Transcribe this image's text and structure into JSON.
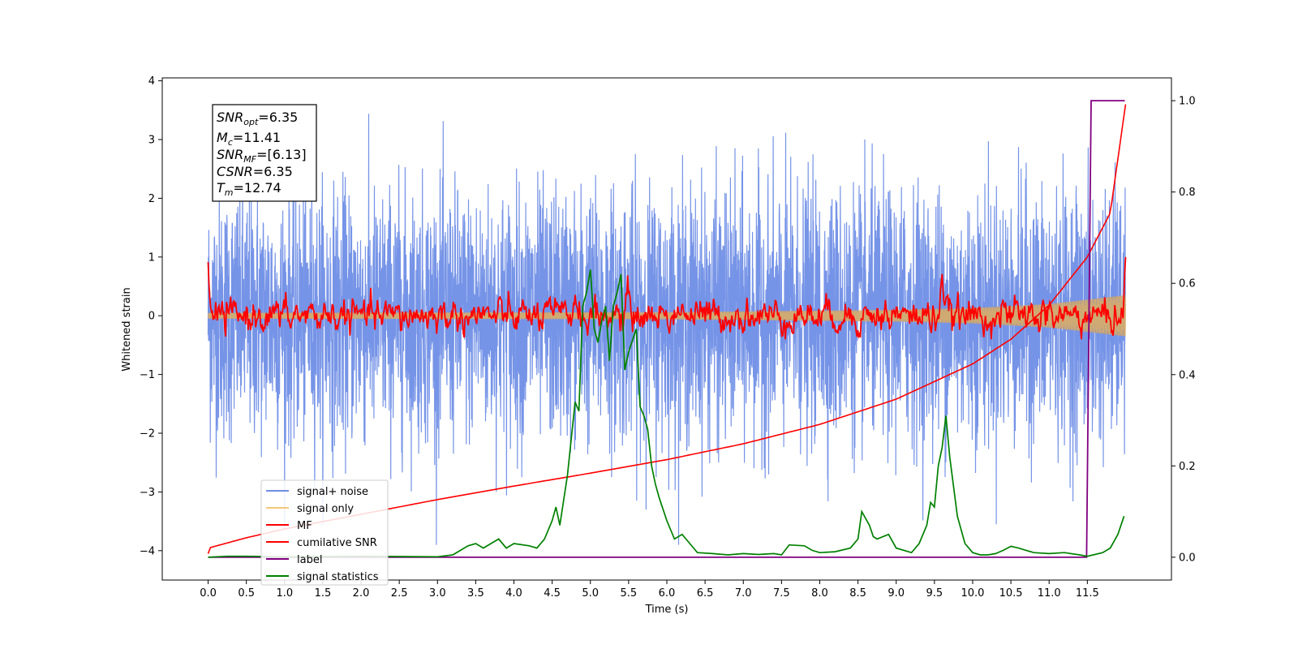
{
  "chart_data": {
    "type": "line",
    "xlabel": "Time (s)",
    "ylabel_left": "Whitened strain",
    "ylabel_right": "",
    "xlim": [
      -0.6,
      12.6
    ],
    "ylim_left": [
      -4.5,
      4.05
    ],
    "ylim_right": [
      -0.05,
      1.05
    ],
    "x_ticks": [
      "0.0",
      "0.5",
      "1.0",
      "1.5",
      "2.0",
      "2.5",
      "3.0",
      "3.5",
      "4.0",
      "4.5",
      "5.0",
      "5.5",
      "6.0",
      "6.5",
      "7.0",
      "7.5",
      "8.0",
      "8.5",
      "9.0",
      "9.5",
      "10.0",
      "10.5",
      "11.0",
      "11.5"
    ],
    "y_ticks_left": [
      "4",
      "3",
      "2",
      "1",
      "0",
      "−1",
      "−2",
      "−3",
      "−4"
    ],
    "y_ticks_right": [
      "1.0",
      "0.8",
      "0.6",
      "0.4",
      "0.2",
      "0.0"
    ],
    "grid": false,
    "legend_placement": "lower-left",
    "info_box": {
      "snr_opt": "=6.35",
      "mc": "=11.41",
      "snr_mf": "=[6.13]",
      "csnr": "=6.35",
      "tm": "=12.74"
    },
    "series": [
      {
        "name": "signal+ noise",
        "axis": "left",
        "color": "#6f8ee6",
        "x_range": [
          0.0,
          12.0
        ],
        "description_values": "noisy whitened strain, approx between -3.7 and 3.7"
      },
      {
        "name": "signal only",
        "axis": "left",
        "color": "#f5c77a",
        "x_range": [
          0.0,
          12.0
        ],
        "envelope_amplitude": [
          [
            0.0,
            0.05
          ],
          [
            6.0,
            0.06
          ],
          [
            9.0,
            0.1
          ],
          [
            10.0,
            0.13
          ],
          [
            11.0,
            0.2
          ],
          [
            12.0,
            0.35
          ]
        ]
      },
      {
        "name": "MF",
        "axis": "left",
        "color": "#ff0000",
        "x_range": [
          0.0,
          12.0
        ],
        "peaks": [
          [
            0.0,
            1.0
          ],
          [
            0.05,
            -0.2
          ],
          [
            4.8,
            0.5
          ],
          [
            5.5,
            0.45
          ],
          [
            6.2,
            0.4
          ],
          [
            9.6,
            0.9
          ],
          [
            12.0,
            0.95
          ]
        ]
      },
      {
        "name": "cumilative SNR",
        "axis": "left",
        "color": "#ff0000",
        "points": [
          [
            0.0,
            -4.05
          ],
          [
            0.02,
            -3.95
          ],
          [
            0.5,
            -3.78
          ],
          [
            1.0,
            -3.63
          ],
          [
            2.0,
            -3.38
          ],
          [
            3.0,
            -3.13
          ],
          [
            4.0,
            -2.9
          ],
          [
            5.0,
            -2.68
          ],
          [
            6.0,
            -2.45
          ],
          [
            7.0,
            -2.18
          ],
          [
            8.0,
            -1.85
          ],
          [
            9.0,
            -1.42
          ],
          [
            10.0,
            -0.82
          ],
          [
            10.5,
            -0.4
          ],
          [
            11.0,
            0.18
          ],
          [
            11.5,
            1.0
          ],
          [
            11.8,
            1.75
          ],
          [
            12.0,
            3.6
          ]
        ]
      },
      {
        "name": "label",
        "axis": "right",
        "color": "#800080",
        "points": [
          [
            0.0,
            0.0
          ],
          [
            11.49,
            0.0
          ],
          [
            11.55,
            1.0
          ],
          [
            11.99,
            1.0
          ]
        ]
      },
      {
        "name": "signal statistics",
        "axis": "right",
        "color": "#008000",
        "points": [
          [
            0.0,
            0.0
          ],
          [
            0.25,
            0.002
          ],
          [
            0.5,
            0.002
          ],
          [
            1.0,
            0.001
          ],
          [
            2.0,
            0.002
          ],
          [
            3.0,
            0.001
          ],
          [
            3.2,
            0.005
          ],
          [
            3.4,
            0.025
          ],
          [
            3.5,
            0.03
          ],
          [
            3.6,
            0.02
          ],
          [
            3.7,
            0.03
          ],
          [
            3.8,
            0.04
          ],
          [
            3.9,
            0.02
          ],
          [
            4.0,
            0.03
          ],
          [
            4.2,
            0.025
          ],
          [
            4.3,
            0.02
          ],
          [
            4.4,
            0.04
          ],
          [
            4.5,
            0.08
          ],
          [
            4.55,
            0.11
          ],
          [
            4.6,
            0.07
          ],
          [
            4.7,
            0.18
          ],
          [
            4.8,
            0.34
          ],
          [
            4.85,
            0.32
          ],
          [
            4.9,
            0.55
          ],
          [
            4.95,
            0.58
          ],
          [
            5.0,
            0.63
          ],
          [
            5.05,
            0.5
          ],
          [
            5.1,
            0.47
          ],
          [
            5.15,
            0.52
          ],
          [
            5.2,
            0.55
          ],
          [
            5.25,
            0.43
          ],
          [
            5.3,
            0.55
          ],
          [
            5.35,
            0.58
          ],
          [
            5.4,
            0.62
          ],
          [
            5.45,
            0.41
          ],
          [
            5.5,
            0.45
          ],
          [
            5.6,
            0.5
          ],
          [
            5.65,
            0.33
          ],
          [
            5.7,
            0.31
          ],
          [
            5.75,
            0.28
          ],
          [
            5.8,
            0.2
          ],
          [
            5.85,
            0.16
          ],
          [
            5.9,
            0.13
          ],
          [
            6.0,
            0.08
          ],
          [
            6.1,
            0.04
          ],
          [
            6.2,
            0.05
          ],
          [
            6.3,
            0.03
          ],
          [
            6.4,
            0.01
          ],
          [
            6.6,
            0.008
          ],
          [
            6.8,
            0.005
          ],
          [
            7.0,
            0.008
          ],
          [
            7.2,
            0.006
          ],
          [
            7.4,
            0.008
          ],
          [
            7.5,
            0.005
          ],
          [
            7.6,
            0.027
          ],
          [
            7.8,
            0.025
          ],
          [
            7.9,
            0.015
          ],
          [
            8.0,
            0.01
          ],
          [
            8.2,
            0.012
          ],
          [
            8.4,
            0.02
          ],
          [
            8.5,
            0.04
          ],
          [
            8.55,
            0.1
          ],
          [
            8.65,
            0.07
          ],
          [
            8.7,
            0.045
          ],
          [
            8.75,
            0.04
          ],
          [
            8.9,
            0.05
          ],
          [
            9.0,
            0.02
          ],
          [
            9.2,
            0.01
          ],
          [
            9.3,
            0.03
          ],
          [
            9.4,
            0.07
          ],
          [
            9.45,
            0.12
          ],
          [
            9.5,
            0.11
          ],
          [
            9.55,
            0.2
          ],
          [
            9.6,
            0.24
          ],
          [
            9.65,
            0.31
          ],
          [
            9.7,
            0.22
          ],
          [
            9.8,
            0.09
          ],
          [
            9.85,
            0.06
          ],
          [
            9.9,
            0.03
          ],
          [
            10.0,
            0.01
          ],
          [
            10.1,
            0.005
          ],
          [
            10.2,
            0.005
          ],
          [
            10.3,
            0.008
          ],
          [
            10.4,
            0.015
          ],
          [
            10.5,
            0.024
          ],
          [
            10.6,
            0.02
          ],
          [
            10.7,
            0.015
          ],
          [
            10.8,
            0.01
          ],
          [
            11.0,
            0.008
          ],
          [
            11.2,
            0.01
          ],
          [
            11.4,
            0.005
          ],
          [
            11.5,
            0.002
          ],
          [
            11.7,
            0.01
          ],
          [
            11.8,
            0.02
          ],
          [
            11.9,
            0.05
          ],
          [
            11.98,
            0.09
          ]
        ]
      }
    ]
  }
}
